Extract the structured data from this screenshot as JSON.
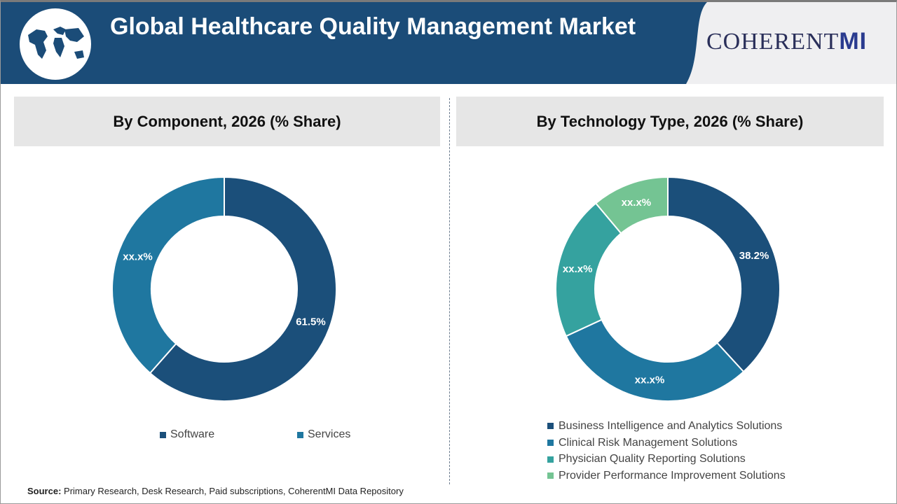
{
  "header": {
    "title": "Global Healthcare Quality Management Market",
    "logo_text": "COHERENT",
    "logo_suffix": "MI"
  },
  "colors": {
    "header": "#1b4c78",
    "series_dark": "#1b4f7a",
    "series_mid": "#1f77a0",
    "series_teal": "#35a29f",
    "series_green": "#74c493"
  },
  "chart_data": [
    {
      "type": "pie",
      "donut": true,
      "title": "By Component, 2026 (% Share)",
      "categories": [
        "Software",
        "Services"
      ],
      "values": [
        61.5,
        38.5
      ],
      "labels": [
        "61.5%",
        "xx.x%"
      ],
      "colors": [
        "#1b4f7a",
        "#1f77a0"
      ],
      "legend": "bottom"
    },
    {
      "type": "pie",
      "donut": true,
      "title": "By Technology Type, 2026 (% Share)",
      "categories": [
        "Business Intelligence and Analytics Solutions",
        "Clinical Risk Management Solutions",
        "Physician Quality Reporting Solutions",
        "Provider Performance Improvement Solutions"
      ],
      "values": [
        38.2,
        29.9,
        20.8,
        11.1
      ],
      "labels": [
        "38.2%",
        "xx.x%",
        "xx.x%",
        "xx.x%"
      ],
      "colors": [
        "#1b4f7a",
        "#1f77a0",
        "#35a29f",
        "#74c493"
      ],
      "legend": "bottom"
    }
  ],
  "source": {
    "label": "Source:",
    "text": " Primary Research, Desk Research, Paid subscriptions, CoherentMI Data Repository"
  }
}
